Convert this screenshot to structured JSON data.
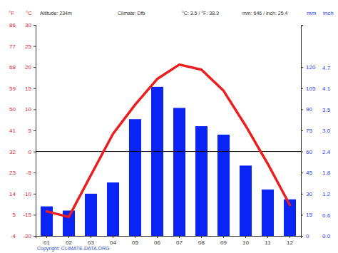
{
  "chart_data": {
    "type": "combo",
    "annotations": [
      "Altitude: 234m",
      "Climate: Dfb",
      "°C: 3.5 / °F: 38.3",
      "mm: 646 / inch: 25.4"
    ],
    "source": "Copyright: CLIMATE-DATA.ORG",
    "y_label": "°C",
    "y2_label": "mm",
    "y3_label": "°F",
    "y4_label": "inch",
    "categories": [
      "01",
      "02",
      "03",
      "04",
      "05",
      "06",
      "07",
      "08",
      "09",
      "10",
      "11",
      "12"
    ],
    "series": [
      {
        "type": "bar",
        "axis": "y2",
        "color": "#0a24f5",
        "values": [
          21,
          18,
          30,
          38,
          83,
          106,
          91,
          78,
          72,
          50,
          33,
          26
        ]
      },
      {
        "type": "line",
        "axis": "y",
        "color": "#ee1c1c",
        "marker": "none",
        "line_style": "solid",
        "values": [
          -14.2,
          -15.5,
          -5.6,
          4.2,
          11.1,
          17.2,
          20.6,
          19.4,
          14.4,
          6.1,
          -2.9,
          -12.7
        ]
      }
    ],
    "reference_line": 0,
    "ylim": [
      -20,
      30
    ],
    "yticks": [
      -20,
      -15,
      -10,
      -5,
      0,
      5,
      10,
      15,
      20,
      25,
      30
    ],
    "y2lim": [
      0,
      150
    ],
    "y2ticks": [
      0,
      15,
      30,
      45,
      60,
      75,
      90,
      105,
      120
    ],
    "y3lim": [
      -4,
      86
    ],
    "y3ticks": [
      -4,
      5,
      14,
      23,
      32,
      41,
      50,
      59,
      68,
      77,
      86
    ],
    "y4lim": [
      0,
      5.91
    ],
    "y4ticks": [
      {
        "value": 0,
        "label": "0.0"
      },
      {
        "value": 0.59,
        "label": "0.6"
      },
      {
        "value": 1.18,
        "label": "1.2"
      },
      {
        "value": 1.77,
        "label": "1.8"
      },
      {
        "value": 2.36,
        "label": "2.4"
      },
      {
        "value": 2.95,
        "label": "3.0"
      },
      {
        "value": 3.54,
        "label": "3.5"
      },
      {
        "value": 4.13,
        "label": "4.1"
      },
      {
        "value": 4.72,
        "label": "4.7"
      }
    ],
    "grid": false
  }
}
